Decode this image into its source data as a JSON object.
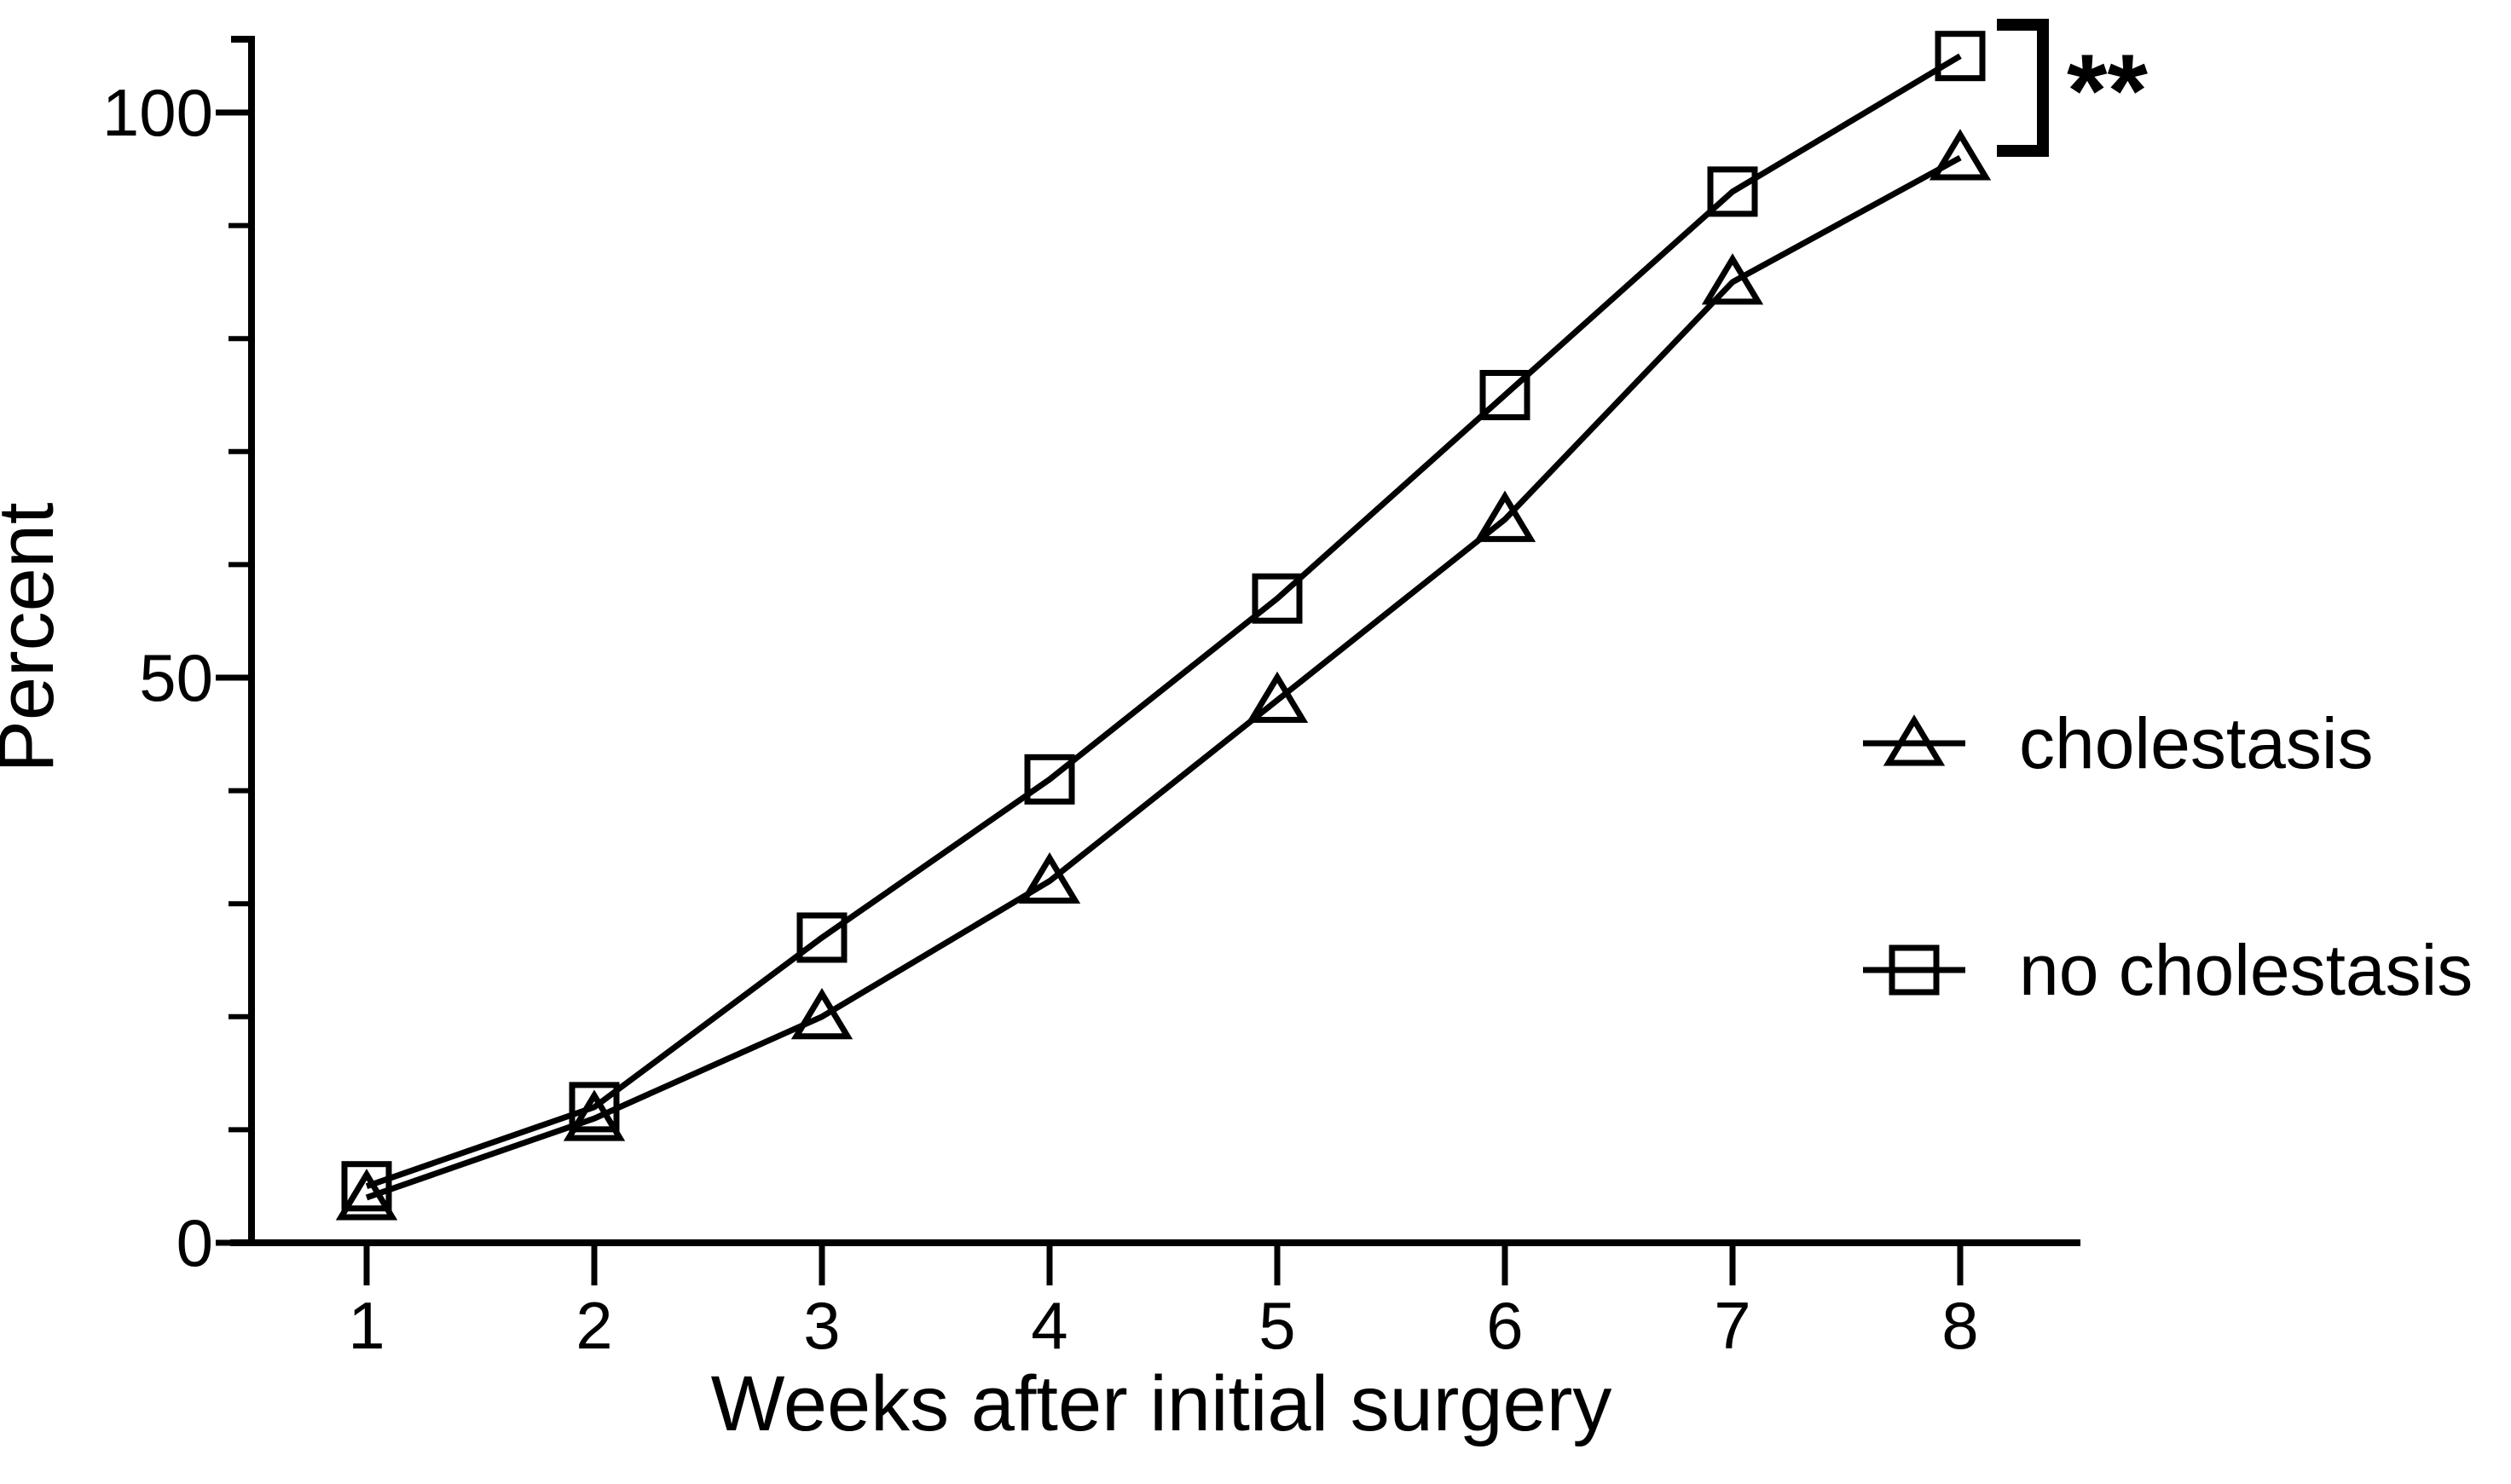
{
  "page": {
    "background": "#ffffff",
    "ink": "#000000"
  },
  "chart_data": {
    "type": "line",
    "title": "",
    "xlabel": "Weeks after initial surgery",
    "ylabel": "Percent",
    "x": [
      1,
      2,
      3,
      4,
      5,
      6,
      7,
      8
    ],
    "x_tick_labels": [
      "1",
      "2",
      "3",
      "4",
      "5",
      "6",
      "7",
      "8"
    ],
    "y_major_ticks": [
      {
        "value": 0,
        "label": "0"
      },
      {
        "value": 50,
        "label": "50"
      },
      {
        "value": 100,
        "label": "100"
      }
    ],
    "y_minor_ticks": [
      10,
      20,
      30,
      40,
      60,
      70,
      80,
      90
    ],
    "ylim": [
      0,
      106.5
    ],
    "grid": false,
    "series": [
      {
        "name": "cholestasis",
        "marker": "triangle",
        "color": "#000000",
        "values": [
          4,
          11,
          20,
          32,
          48,
          64,
          85,
          96
        ]
      },
      {
        "name": "no cholestasis",
        "marker": "square",
        "color": "#000000",
        "values": [
          5,
          12,
          27,
          41,
          57,
          75,
          93,
          105
        ]
      }
    ],
    "legend": {
      "position": "right",
      "entries": [
        "cholestasis",
        "no cholestasis"
      ]
    },
    "annotations": [
      {
        "type": "significance-bracket",
        "label": "**",
        "at_week": 8,
        "between_series": [
          "no cholestasis",
          "cholestasis"
        ]
      }
    ]
  }
}
